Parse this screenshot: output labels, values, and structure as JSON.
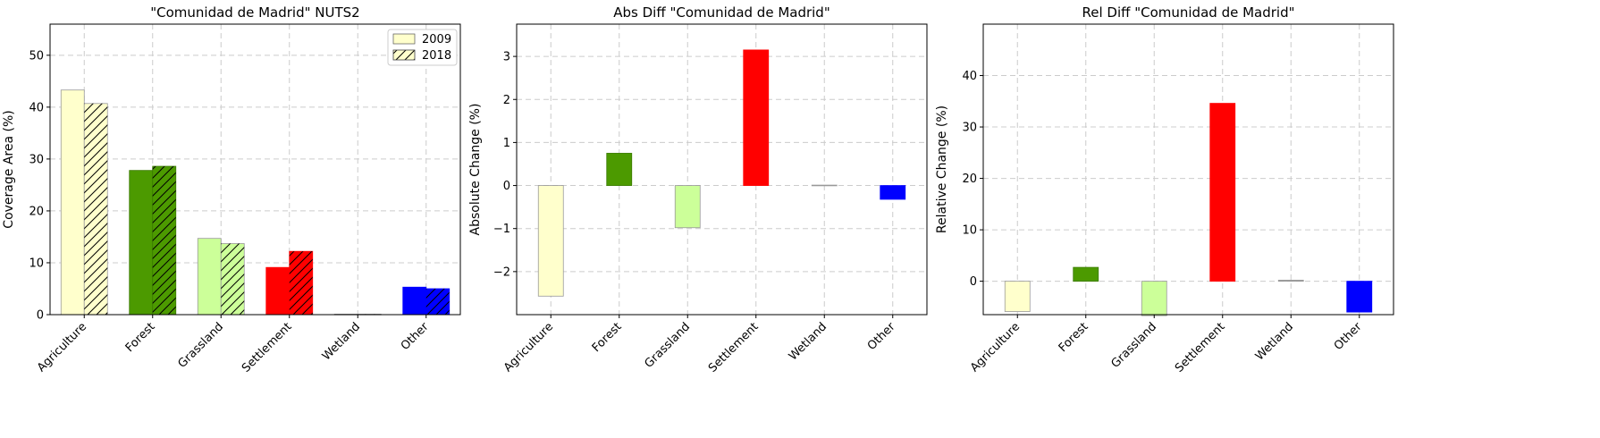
{
  "chart_data": [
    {
      "type": "bar",
      "title": "\"Comunidad de Madrid\" NUTS2",
      "xlabel": "",
      "ylabel": "Coverage Area (%)",
      "ylim": [
        0,
        56
      ],
      "yticks": [
        0,
        10,
        20,
        30,
        40,
        50
      ],
      "grid": true,
      "legend": "top-right",
      "categories": [
        "Agriculture",
        "Forest",
        "Grassland",
        "Settlement",
        "Wetland",
        "Other"
      ],
      "colors": [
        "#ffffcc",
        "#4c9a00",
        "#ccff99",
        "#ff0000",
        "#999999",
        "#0000ff"
      ],
      "series": [
        {
          "name": "2009",
          "hatch": false,
          "values": [
            43.3,
            27.8,
            14.7,
            9.1,
            0.1,
            5.3
          ]
        },
        {
          "name": "2018",
          "hatch": true,
          "values": [
            40.7,
            28.6,
            13.7,
            12.2,
            0.1,
            5.0
          ]
        }
      ]
    },
    {
      "type": "bar",
      "title": "Abs Diff \"Comunidad de Madrid\"",
      "xlabel": "",
      "ylabel": "Absolute Change (%)",
      "ylim": [
        -3,
        3.75
      ],
      "yticks": [
        -2,
        -1,
        0,
        1,
        2,
        3
      ],
      "ytick_labels": [
        "−2",
        "−1",
        "0",
        "1",
        "2",
        "3"
      ],
      "grid": true,
      "categories": [
        "Agriculture",
        "Forest",
        "Grassland",
        "Settlement",
        "Wetland",
        "Other"
      ],
      "colors": [
        "#ffffcc",
        "#4c9a00",
        "#ccff99",
        "#ff0000",
        "#999999",
        "#0000ff"
      ],
      "values": [
        -2.57,
        0.75,
        -0.98,
        3.15,
        0.01,
        -0.32
      ]
    },
    {
      "type": "bar",
      "title": "Rel Diff \"Comunidad de Madrid\"",
      "xlabel": "",
      "ylabel": "Relative Change (%)",
      "ylim": [
        -6.5,
        50
      ],
      "yticks": [
        0,
        10,
        20,
        30,
        40
      ],
      "grid": true,
      "categories": [
        "Agriculture",
        "Forest",
        "Grassland",
        "Settlement",
        "Wetland",
        "Other"
      ],
      "colors": [
        "#ffffcc",
        "#4c9a00",
        "#ccff99",
        "#ff0000",
        "#999999",
        "#0000ff"
      ],
      "values": [
        -5.9,
        2.7,
        -6.7,
        34.6,
        0.2,
        -6.0
      ]
    }
  ]
}
